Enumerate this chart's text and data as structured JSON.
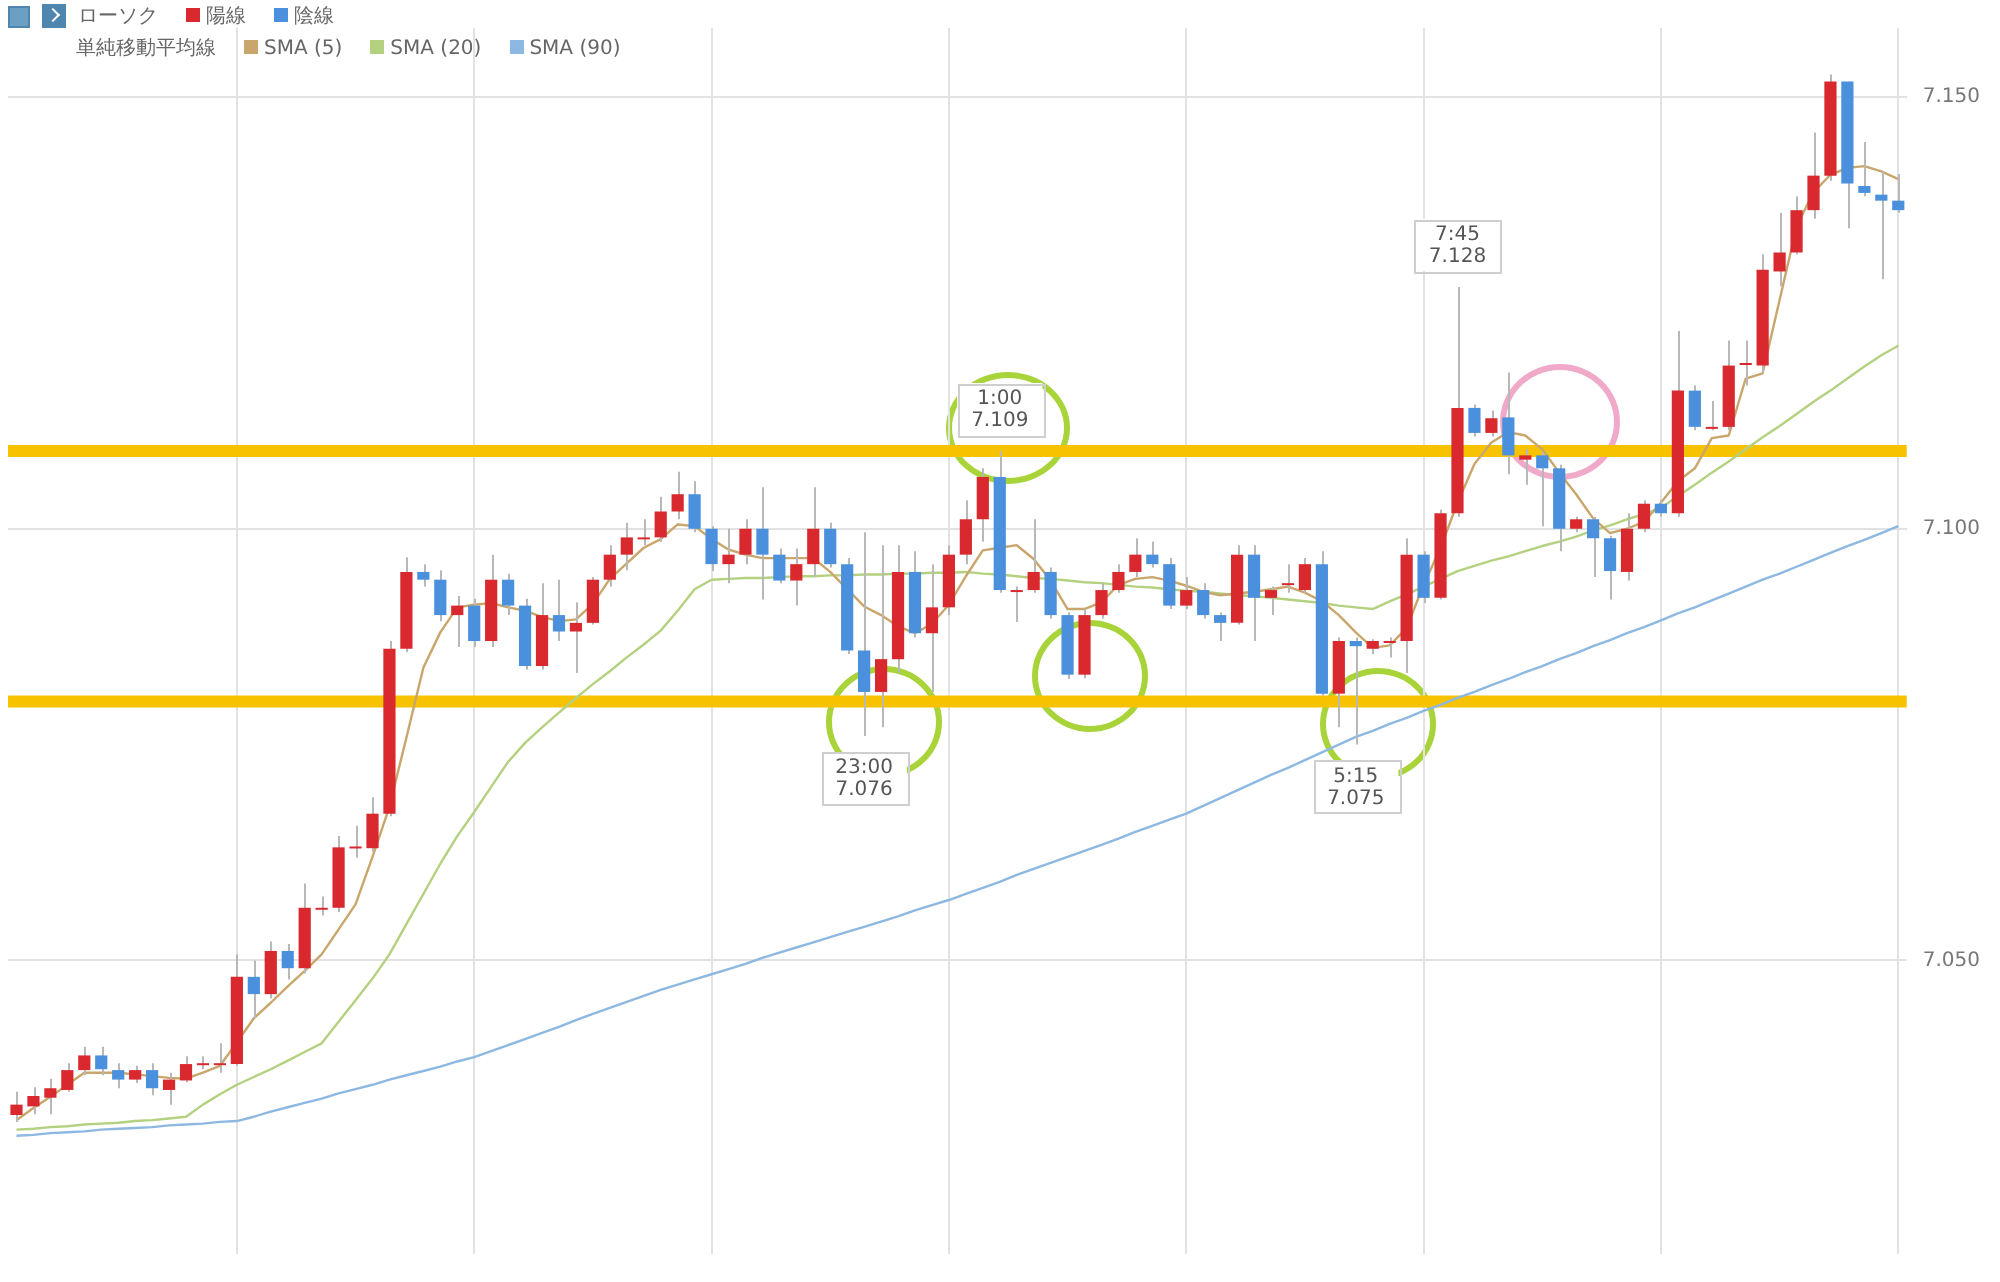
{
  "chart_data": {
    "type": "candlestick",
    "categories": [
      null,
      null,
      null,
      null,
      null,
      null,
      null,
      null,
      null,
      null,
      null,
      null,
      null,
      null,
      null,
      null,
      null,
      null,
      null,
      null,
      null,
      null,
      null,
      null,
      null,
      null,
      null,
      null,
      null,
      null,
      null,
      null,
      null,
      null,
      null,
      null,
      null,
      null,
      null,
      null,
      null,
      null,
      null,
      null,
      null,
      null,
      null,
      null,
      null,
      null,
      null,
      null,
      null,
      null,
      null,
      null,
      null,
      null,
      null,
      null,
      null,
      null,
      null,
      null,
      null,
      null,
      null,
      null,
      null,
      null,
      null,
      null,
      null,
      null,
      null,
      null,
      null,
      null,
      null,
      null,
      null,
      null,
      null,
      null,
      null,
      null,
      null,
      null,
      null,
      null,
      null,
      null,
      null,
      null,
      null,
      null,
      null,
      null,
      null,
      null,
      null,
      null,
      null,
      null,
      null,
      null,
      null,
      null,
      null,
      null,
      null,
      null
    ],
    "series": [
      {
        "name": "陽線",
        "color": "#d9292e",
        "ohlc": [
          [
            7.0321,
            7.0348,
            7.0313,
            7.0333
          ],
          [
            7.0331,
            7.0353,
            7.0322,
            7.0343
          ],
          [
            7.0341,
            7.0363,
            7.0322,
            7.0352
          ],
          [
            7.035,
            7.0381,
            7.0348,
            7.0373
          ],
          [
            7.0373,
            7.04,
            7.0367,
            7.039
          ],
          null,
          null,
          [
            7.0362,
            7.0378,
            7.0358,
            7.0373
          ],
          null,
          [
            7.035,
            7.037,
            7.0333,
            7.0362
          ],
          [
            7.0361,
            7.0389,
            7.0359,
            7.038
          ],
          [
            7.0381,
            7.0389,
            7.0374,
            7.0381
          ],
          [
            7.0381,
            7.0404,
            7.037,
            7.0381
          ],
          [
            7.038,
            7.0507,
            7.0378,
            7.0481
          ],
          null,
          [
            7.0461,
            7.0522,
            7.0456,
            7.0511
          ],
          null,
          [
            7.0491,
            7.0589,
            7.0485,
            7.0561
          ],
          [
            7.0561,
            7.0574,
            7.0552,
            7.0561
          ],
          [
            7.0561,
            7.0644,
            7.0556,
            7.0631
          ],
          [
            7.0632,
            7.0656,
            7.0619,
            7.0632
          ],
          [
            7.063,
            7.0689,
            7.0626,
            7.067
          ],
          [
            7.067,
            7.087,
            7.0667,
            7.0861
          ],
          [
            7.0861,
            7.0967,
            7.0857,
            7.095
          ],
          null,
          null,
          [
            7.09,
            7.0922,
            7.0863,
            7.0911
          ],
          null,
          [
            7.087,
            7.097,
            7.0863,
            7.0941
          ],
          null,
          null,
          [
            7.0841,
            7.0937,
            7.0837,
            7.09
          ],
          null,
          [
            7.0881,
            7.0915,
            7.0833,
            7.0891
          ],
          [
            7.0891,
            7.0944,
            7.0889,
            7.0941
          ],
          [
            7.0941,
            7.0981,
            7.0933,
            7.097
          ],
          [
            7.097,
            7.1007,
            7.0952,
            7.099
          ],
          [
            7.099,
            7.1011,
            7.0981,
            7.099
          ],
          [
            7.099,
            7.1037,
            7.0985,
            7.102
          ],
          [
            7.102,
            7.1066,
            7.1011,
            7.104
          ],
          null,
          null,
          [
            7.0959,
            7.1,
            7.0937,
            7.097
          ],
          [
            7.097,
            7.1011,
            7.0959,
            7.1
          ],
          null,
          null,
          [
            7.094,
            7.0977,
            7.0911,
            7.0959
          ],
          [
            7.0959,
            7.1048,
            7.0944,
            7.1
          ],
          null,
          null,
          null,
          [
            7.0811,
            7.0981,
            7.077,
            7.0849
          ],
          [
            7.0849,
            7.0981,
            7.0833,
            7.095
          ],
          null,
          [
            7.0879,
            7.0959,
            7.0811,
            7.0909
          ],
          [
            7.0909,
            7.0981,
            7.09,
            7.097
          ],
          [
            7.097,
            7.1033,
            7.0959,
            7.1011
          ],
          [
            7.1011,
            7.107,
            7.0985,
            7.106
          ],
          null,
          [
            7.0929,
            7.0933,
            7.0892,
            7.0929
          ],
          [
            7.0929,
            7.1011,
            7.0926,
            7.095
          ],
          null,
          null,
          [
            7.0831,
            7.0907,
            7.0827,
            7.09
          ],
          [
            7.09,
            7.0937,
            7.0896,
            7.0929
          ],
          [
            7.0929,
            7.0959,
            7.0926,
            7.095
          ],
          [
            7.095,
            7.0989,
            7.0944,
            7.097
          ],
          null,
          null,
          [
            7.0911,
            7.0944,
            7.0907,
            7.0929
          ],
          null,
          null,
          [
            7.0891,
            7.0981,
            7.0889,
            7.097
          ],
          null,
          [
            7.092,
            7.0933,
            7.09,
            7.0929
          ],
          [
            7.0937,
            7.0959,
            7.0926,
            7.0937
          ],
          [
            7.0929,
            7.0966,
            7.0926,
            7.0959
          ],
          null,
          [
            7.0809,
            7.0874,
            7.077,
            7.087
          ],
          null,
          [
            7.0861,
            7.0872,
            7.0855,
            7.087
          ],
          [
            7.087,
            7.0874,
            7.0851,
            7.087
          ],
          [
            7.087,
            7.0989,
            7.0833,
            7.097
          ],
          null,
          [
            7.092,
            7.1022,
            7.0918,
            7.1018
          ],
          [
            7.1018,
            7.128,
            7.1014,
            7.114
          ],
          null,
          [
            7.1111,
            7.1137,
            7.1107,
            7.1128
          ],
          null,
          [
            7.108,
            7.1092,
            7.1051,
            7.1085
          ],
          null,
          null,
          [
            7.1,
            7.1014,
            7.0996,
            7.1011
          ],
          null,
          null,
          [
            7.095,
            7.1018,
            7.094,
            7.1
          ],
          [
            7.1,
            7.1033,
            7.0996,
            7.1029
          ],
          null,
          [
            7.1018,
            7.1229,
            7.1014,
            7.116
          ],
          null,
          [
            7.1118,
            7.1148,
            7.1114,
            7.1118
          ],
          [
            7.1118,
            7.1218,
            7.1114,
            7.1189
          ],
          [
            7.1192,
            7.1218,
            7.1166,
            7.1192
          ],
          [
            7.1189,
            7.1318,
            7.1181,
            7.13
          ],
          [
            7.1298,
            7.1366,
            7.1281,
            7.132
          ],
          [
            7.132,
            7.1385,
            7.1318,
            7.1369
          ],
          [
            7.1369,
            7.1459,
            7.1359,
            7.1409
          ],
          [
            7.1409,
            7.1526,
            7.1403,
            7.1518
          ],
          null,
          null,
          null,
          null
        ]
      },
      {
        "name": "陰線",
        "color": "#4a90dc",
        "ohlc": [
          null,
          null,
          null,
          null,
          null,
          [
            7.039,
            7.04,
            7.0367,
            7.0374
          ],
          [
            7.0373,
            7.0381,
            7.0352,
            7.0362
          ],
          null,
          [
            7.0373,
            7.0381,
            7.0344,
            7.0352
          ],
          null,
          null,
          null,
          null,
          null,
          [
            7.0481,
            7.05,
            7.0433,
            7.0461
          ],
          null,
          [
            7.0511,
            7.0519,
            7.0478,
            7.0491
          ],
          null,
          null,
          null,
          null,
          null,
          null,
          null,
          [
            7.095,
            7.0959,
            7.0933,
            7.0941
          ],
          [
            7.0941,
            7.0952,
            7.0893,
            7.09
          ],
          null,
          [
            7.0911,
            7.0919,
            7.0863,
            7.087
          ],
          null,
          [
            7.0941,
            7.0948,
            7.09,
            7.0911
          ],
          [
            7.0911,
            7.0919,
            7.0837,
            7.0841
          ],
          null,
          [
            7.09,
            7.0941,
            7.087,
            7.0881
          ],
          null,
          null,
          null,
          null,
          null,
          null,
          null,
          [
            7.104,
            7.1055,
            7.0996,
            7.1
          ],
          [
            7.1,
            7.1003,
            7.0951,
            7.0959
          ],
          null,
          null,
          [
            7.1,
            7.1048,
            7.0918,
            7.097
          ],
          [
            7.097,
            7.0977,
            7.0937,
            7.094
          ],
          null,
          null,
          [
            7.1,
            7.1007,
            7.0955,
            7.0959
          ],
          [
            7.0959,
            7.0966,
            7.0855,
            7.0859
          ],
          [
            7.0859,
            7.0996,
            7.076,
            7.0811
          ],
          null,
          null,
          [
            7.095,
            7.0974,
            7.0874,
            7.0879
          ],
          null,
          null,
          null,
          null,
          [
            7.106,
            7.109,
            7.0926,
            7.0929
          ],
          null,
          null,
          [
            7.095,
            7.0955,
            7.0896,
            7.09
          ],
          [
            7.09,
            7.0903,
            7.0826,
            7.0831
          ],
          null,
          null,
          null,
          null,
          [
            7.097,
            7.0985,
            7.0955,
            7.0959
          ],
          [
            7.0959,
            7.0966,
            7.0907,
            7.0911
          ],
          null,
          [
            7.0929,
            7.0937,
            7.0896,
            7.09
          ],
          [
            7.09,
            7.0903,
            7.087,
            7.0891
          ],
          null,
          [
            7.097,
            7.0981,
            7.087,
            7.092
          ],
          null,
          null,
          null,
          [
            7.0959,
            7.0974,
            7.0807,
            7.0809
          ],
          null,
          [
            7.087,
            7.0874,
            7.075,
            7.0864
          ],
          null,
          null,
          null,
          [
            7.097,
            7.0974,
            7.0914,
            7.092
          ],
          null,
          null,
          [
            7.114,
            7.1144,
            7.1107,
            7.1111
          ],
          null,
          [
            7.1129,
            7.1181,
            7.1063,
            7.1085
          ],
          null,
          [
            7.1085,
            7.1089,
            7.1003,
            7.107
          ],
          [
            7.107,
            7.1074,
            7.0974,
            7.1
          ],
          null,
          [
            7.1011,
            7.1014,
            7.0944,
            7.0989
          ],
          [
            7.0989,
            7.0992,
            7.0918,
            7.0951
          ],
          null,
          null,
          [
            7.1029,
            7.1033,
            7.1014,
            7.1018
          ],
          null,
          [
            7.116,
            7.1166,
            7.1114,
            7.1118
          ],
          null,
          null,
          null,
          null,
          null,
          null,
          null,
          null,
          [
            7.1518,
            7.1518,
            7.1348,
            7.14
          ],
          [
            7.1397,
            7.1448,
            7.1385,
            7.1389
          ],
          [
            7.1387,
            7.1414,
            7.1289,
            7.138
          ],
          [
            7.138,
            7.1411,
            7.1366,
            7.1369
          ]
        ]
      },
      {
        "type": "line",
        "name": "SMA (5)",
        "color": "#c9a66b",
        "values": [
          7.0315,
          7.0329,
          7.0342,
          7.0356,
          7.037,
          7.037,
          7.037,
          7.0368,
          7.0366,
          7.0364,
          7.0363,
          7.037,
          7.0378,
          7.0405,
          7.0433,
          7.0451,
          7.047,
          7.0488,
          7.0507,
          7.0536,
          7.0565,
          7.062,
          7.0678,
          7.0758,
          7.0839,
          7.088,
          7.0909,
          7.0912,
          7.0914,
          7.0909,
          7.0905,
          7.0898,
          7.0893,
          7.0895,
          7.0913,
          7.0942,
          7.096,
          7.0978,
          7.0988,
          7.1005,
          7.1003,
          7.0988,
          7.0976,
          7.097,
          7.0966,
          7.0966,
          7.0966,
          7.0966,
          7.095,
          7.093,
          7.091,
          7.09,
          7.0887,
          7.0879,
          7.089,
          7.0912,
          7.0945,
          7.0975,
          7.0978,
          7.0981,
          7.0965,
          7.094,
          7.0907,
          7.0907,
          7.0915,
          7.0935,
          7.0942,
          7.0944,
          7.094,
          7.0934,
          7.0927,
          7.0923,
          7.0925,
          7.0927,
          7.093,
          7.0933,
          7.0926,
          7.0916,
          7.09,
          7.088,
          7.0862,
          7.0865,
          7.0885,
          7.0935,
          7.0978,
          7.103,
          7.1075,
          7.11,
          7.1112,
          7.1108,
          7.1092,
          7.1065,
          7.104,
          7.1012,
          7.0995,
          7.1,
          7.1008,
          7.103,
          7.1055,
          7.107,
          7.1105,
          7.1108,
          7.1174,
          7.118,
          7.1265,
          7.135,
          7.139,
          7.141,
          7.1418,
          7.142,
          7.1414,
          7.1405
        ]
      },
      {
        "type": "line",
        "name": "SMA (20)",
        "color": "#b3d17f",
        "values": [
          7.0304,
          7.0305,
          7.0307,
          7.0308,
          7.031,
          7.0311,
          7.0312,
          7.0314,
          7.0315,
          7.0317,
          7.0319,
          7.0333,
          7.0345,
          7.0356,
          7.0365,
          7.0374,
          7.0384,
          7.0394,
          7.0404,
          7.0429,
          7.0454,
          7.0479,
          7.0507,
          7.0542,
          7.0577,
          7.0612,
          7.0644,
          7.0672,
          7.0701,
          7.073,
          7.0752,
          7.077,
          7.0787,
          7.0804,
          7.082,
          7.0835,
          7.0851,
          7.0866,
          7.0882,
          7.0905,
          7.093,
          7.0941,
          7.0942,
          7.0943,
          7.0943,
          7.0944,
          7.0945,
          7.0945,
          7.0946,
          7.0946,
          7.0947,
          7.0947,
          7.0948,
          7.0948,
          7.0949,
          7.0949,
          7.095,
          7.0948,
          7.0947,
          7.0945,
          7.0943,
          7.0942,
          7.094,
          7.0938,
          7.0937,
          7.0935,
          7.0933,
          7.0932,
          7.093,
          7.0928,
          7.0927,
          7.0925,
          7.0923,
          7.0922,
          7.092,
          7.0918,
          7.0916,
          7.0914,
          7.0911,
          7.0909,
          7.0907,
          7.0916,
          7.0924,
          7.0933,
          7.0942,
          7.0951,
          7.0957,
          7.0963,
          7.0968,
          7.0974,
          7.098,
          7.0985,
          7.0991,
          7.0998,
          7.1004,
          7.1011,
          7.1017,
          7.1024,
          7.1038,
          7.1051,
          7.1065,
          7.1078,
          7.1092,
          7.1106,
          7.1119,
          7.1133,
          7.1147,
          7.116,
          7.1174,
          7.1188,
          7.1201,
          7.1212
        ]
      },
      {
        "type": "line",
        "name": "SMA (90)",
        "color": "#8db8e2",
        "values": [
          7.0297,
          7.0298,
          7.03,
          7.0301,
          7.0302,
          7.0304,
          7.0305,
          7.0306,
          7.0307,
          7.0309,
          7.031,
          7.0311,
          7.0313,
          7.0314,
          7.0319,
          7.0325,
          7.033,
          7.0335,
          7.034,
          7.0346,
          7.0351,
          7.0356,
          7.0362,
          7.0367,
          7.0372,
          7.0377,
          7.0383,
          7.0388,
          7.0395,
          7.0402,
          7.0409,
          7.0416,
          7.0423,
          7.0431,
          7.0438,
          7.0445,
          7.0452,
          7.0459,
          7.0466,
          7.0472,
          7.0478,
          7.0484,
          7.049,
          7.0496,
          7.0503,
          7.0509,
          7.0515,
          7.0521,
          7.0527,
          7.0533,
          7.0539,
          7.0545,
          7.0551,
          7.0558,
          7.0564,
          7.057,
          7.0577,
          7.0584,
          7.0591,
          7.0599,
          7.0606,
          7.0613,
          7.062,
          7.0627,
          7.0634,
          7.0641,
          7.0649,
          7.0656,
          7.0663,
          7.067,
          7.0679,
          7.0688,
          7.0697,
          7.0706,
          7.0715,
          7.0723,
          7.0732,
          7.0741,
          7.075,
          7.0759,
          7.0766,
          7.0774,
          7.0781,
          7.0789,
          7.0796,
          7.0804,
          7.0811,
          7.0819,
          7.0826,
          7.0834,
          7.0841,
          7.0849,
          7.0856,
          7.0864,
          7.0871,
          7.0879,
          7.0886,
          7.0894,
          7.0902,
          7.0909,
          7.0917,
          7.0925,
          7.0933,
          7.0941,
          7.0948,
          7.0956,
          7.0964,
          7.0972,
          7.098,
          7.0987,
          7.0995,
          7.1003
        ]
      }
    ],
    "ylim": [
      7.016,
      7.158
    ],
    "yticks": [
      {
        "value": 7.05,
        "label": "7.050"
      },
      {
        "value": 7.1,
        "label": "7.100"
      },
      {
        "value": 7.15,
        "label": "7.150"
      }
    ],
    "tick_labels": "y",
    "grid": true,
    "legend": "top left",
    "legend_title": "ローソク",
    "ref_lines": [
      {
        "axis": "y",
        "value": 7.109,
        "color": "#f7c200"
      },
      {
        "axis": "y",
        "value": 7.08,
        "color": "#f7c200"
      }
    ],
    "annotations": [
      "単純移動平均線",
      {
        "text": "1:00\n7.109",
        "y": 7.109
      },
      {
        "text": "23:00\n7.076",
        "y": 7.076
      },
      {
        "text": "5:15\n7.075",
        "y": 7.075
      },
      {
        "text": "7:45\n7.128",
        "y": 7.128
      }
    ]
  }
}
